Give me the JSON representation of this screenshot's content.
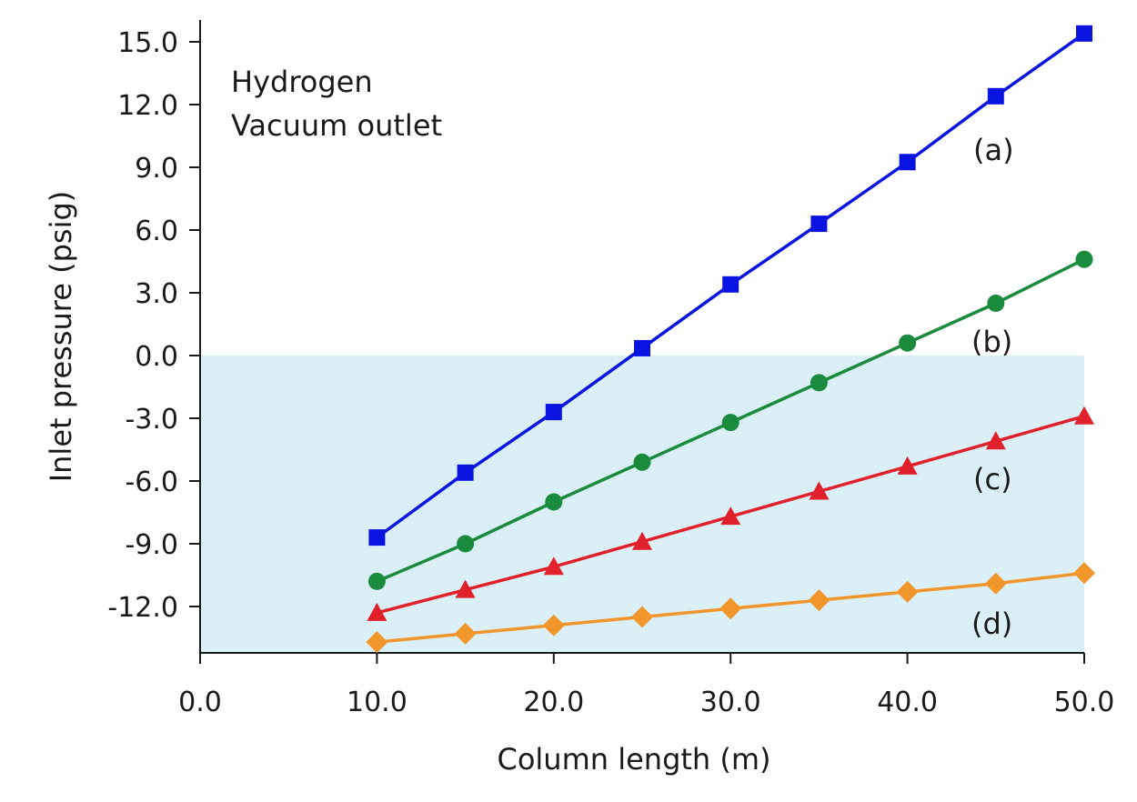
{
  "chart_data": {
    "type": "line",
    "title": "",
    "xlabel": "Column length (m)",
    "ylabel": "Inlet pressure (psig)",
    "xlim": [
      0,
      50
    ],
    "ylim": [
      -14,
      15.5
    ],
    "x_ticks": [
      "0.0",
      "10.0",
      "20.0",
      "30.0",
      "40.0",
      "50.0"
    ],
    "x_tick_values": [
      0,
      10,
      20,
      30,
      40,
      50
    ],
    "y_ticks": [
      "15.0",
      "12.0",
      "9.0",
      "6.0",
      "3.0",
      "0.0",
      "-3.0",
      "-6.0",
      "-9.0",
      "-12.0"
    ],
    "y_tick_values": [
      15,
      12,
      9,
      6,
      3,
      0,
      -3,
      -6,
      -9,
      -12
    ],
    "annotation_lines": [
      "Hydrogen",
      "Vacuum outlet"
    ],
    "shaded_region": {
      "y_from": -14,
      "y_to": 0,
      "x_from": 0,
      "x_to": 50,
      "color": "#dbeff7"
    },
    "grid": false,
    "x": [
      10,
      15,
      20,
      25,
      30,
      35,
      40,
      45,
      50
    ],
    "series": [
      {
        "name": "(a)",
        "color": "#0a14e0",
        "marker": "square",
        "values": [
          -8.7,
          -5.6,
          -2.7,
          0.35,
          3.4,
          6.3,
          9.25,
          12.4,
          15.4
        ]
      },
      {
        "name": "(b)",
        "color": "#1a8a3c",
        "marker": "circle",
        "values": [
          -10.8,
          -9.0,
          -7.0,
          -5.1,
          -3.2,
          -1.3,
          0.6,
          2.5,
          4.6
        ]
      },
      {
        "name": "(c)",
        "color": "#e0202a",
        "marker": "triangle",
        "values": [
          -12.3,
          -11.2,
          -10.1,
          -8.9,
          -7.7,
          -6.5,
          -5.3,
          -4.1,
          -2.9
        ]
      },
      {
        "name": "(d)",
        "color": "#f0962a",
        "marker": "diamond",
        "values": [
          -13.7,
          -13.3,
          -12.9,
          -12.5,
          -12.1,
          -11.7,
          -11.3,
          -10.9,
          -10.4
        ]
      }
    ]
  }
}
